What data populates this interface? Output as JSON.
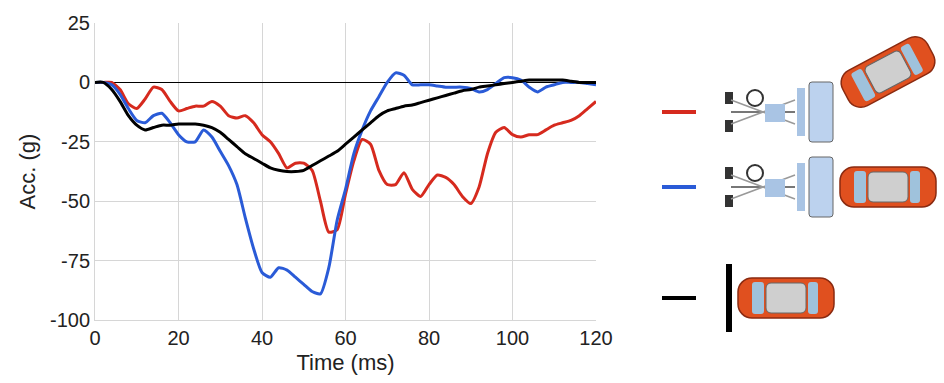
{
  "chart_data": {
    "type": "line",
    "x_label": "Time (ms)",
    "y_label": "Acc. (g)",
    "xlim": [
      0,
      120
    ],
    "xticks": [
      0,
      20,
      40,
      60,
      80,
      100,
      120
    ],
    "ylim": [
      -100,
      25
    ],
    "yticks": [
      -100,
      -75,
      -50,
      -25,
      0,
      25
    ],
    "grid": true,
    "x": [
      0,
      2,
      4,
      6,
      8,
      10,
      12,
      14,
      16,
      18,
      20,
      22,
      24,
      26,
      28,
      30,
      32,
      34,
      36,
      38,
      40,
      42,
      44,
      46,
      48,
      50,
      52,
      54,
      56,
      58,
      60,
      62,
      64,
      66,
      68,
      70,
      72,
      74,
      76,
      78,
      80,
      82,
      84,
      86,
      88,
      90,
      92,
      94,
      96,
      98,
      100,
      102,
      104,
      106,
      108,
      110,
      112,
      114,
      116,
      118,
      120
    ],
    "series": [
      {
        "color": "#d62a1e",
        "values": [
          0,
          0,
          0,
          -3,
          -9,
          -11,
          -7,
          -2,
          -3,
          -8,
          -12,
          -11,
          -10,
          -10,
          -8,
          -10,
          -14,
          -15,
          -14,
          -17,
          -22,
          -25,
          -30,
          -36,
          -34,
          -34,
          -37,
          -50,
          -63,
          -62,
          -47,
          -33,
          -24,
          -26,
          -37,
          -43,
          -43,
          -38,
          -45,
          -48,
          -43,
          -39,
          -40,
          -43,
          -48,
          -51,
          -44,
          -30,
          -21,
          -19,
          -22,
          -23,
          -22,
          -22,
          -20,
          -18,
          -17,
          -16,
          -14,
          -11,
          -8
        ]
      },
      {
        "color": "#2a5bd7",
        "values": [
          0,
          0,
          -1,
          -5,
          -11,
          -16,
          -17,
          -14,
          -13,
          -17,
          -22,
          -25,
          -25,
          -20,
          -23,
          -29,
          -35,
          -43,
          -57,
          -70,
          -80,
          -82,
          -78,
          -79,
          -82,
          -85,
          -88,
          -89,
          -78,
          -58,
          -45,
          -30,
          -20,
          -12,
          -6,
          0,
          4,
          3,
          -1,
          -1,
          -1,
          -1.5,
          -2,
          -2,
          -2,
          -2.5,
          -4,
          -3,
          -0.5,
          2,
          2,
          1,
          -2,
          -4,
          -2,
          -1,
          0,
          0,
          0,
          -0.5,
          -1
        ]
      },
      {
        "color": "#000000",
        "values": [
          0,
          0,
          -3,
          -8,
          -14,
          -18,
          -20,
          -19,
          -18,
          -18,
          -17.5,
          -17.5,
          -17.5,
          -18,
          -19,
          -21,
          -24,
          -27,
          -30,
          -32,
          -34,
          -36,
          -37,
          -37.5,
          -37.5,
          -37,
          -35,
          -33,
          -31,
          -29,
          -26,
          -23,
          -20,
          -17,
          -14,
          -12,
          -11,
          -10,
          -9.5,
          -8.5,
          -7.5,
          -6.5,
          -5.5,
          -4.5,
          -3.5,
          -3,
          -2,
          -1.5,
          -1,
          -0.5,
          0,
          0.5,
          1,
          1,
          1,
          1,
          1,
          0.5,
          0,
          0,
          0
        ]
      }
    ]
  }
}
